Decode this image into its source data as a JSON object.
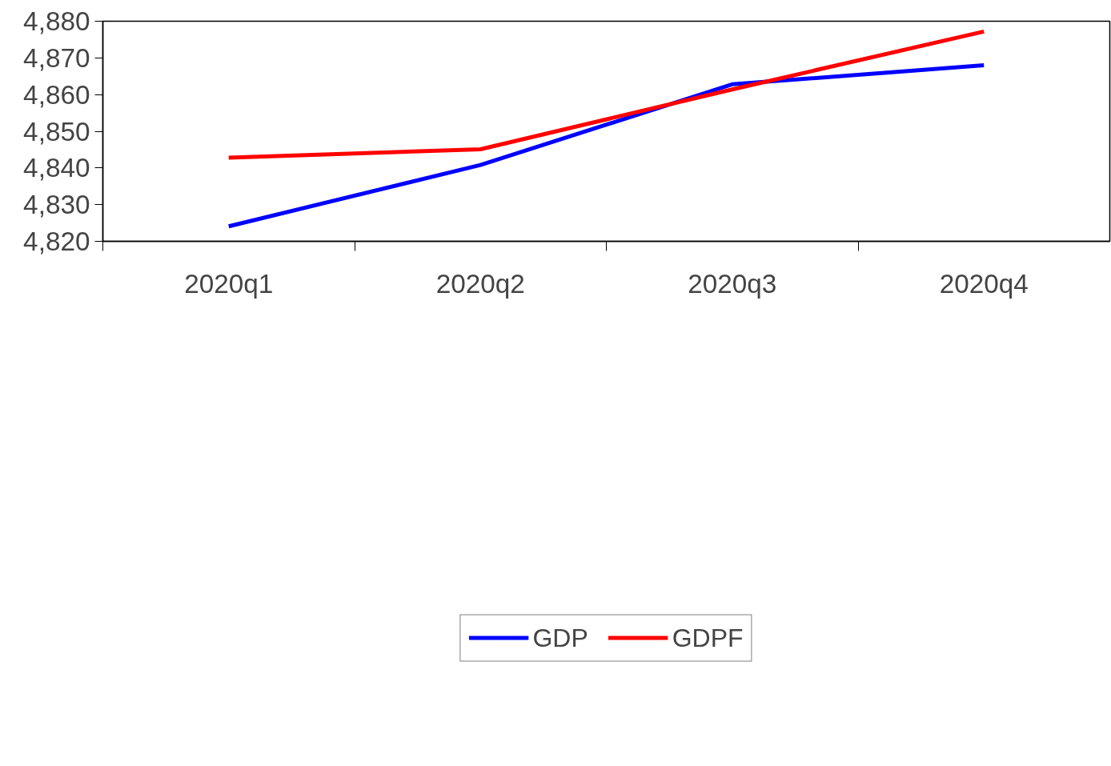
{
  "chart_data": {
    "type": "line",
    "categories": [
      "2020q1",
      "2020q2",
      "2020q3",
      "2020q4"
    ],
    "series": [
      {
        "name": "GDP",
        "color": "#0000ff",
        "values": [
          4824.1,
          4840.8,
          4862.8,
          4868.0
        ]
      },
      {
        "name": "GDPF",
        "color": "#ff0000",
        "values": [
          4842.8,
          4845.1,
          4861.4,
          4877.2
        ]
      }
    ],
    "ylim": [
      4820,
      4880
    ],
    "yticks": [
      {
        "value": 4820,
        "label": "4,820"
      },
      {
        "value": 4830,
        "label": "4,830"
      },
      {
        "value": 4840,
        "label": "4,840"
      },
      {
        "value": 4850,
        "label": "4,850"
      },
      {
        "value": 4860,
        "label": "4,860"
      },
      {
        "value": 4870,
        "label": "4,870"
      },
      {
        "value": 4880,
        "label": "4,880"
      }
    ],
    "grid": false,
    "legend": "bottom",
    "marker": "none",
    "line_style": "solid"
  }
}
